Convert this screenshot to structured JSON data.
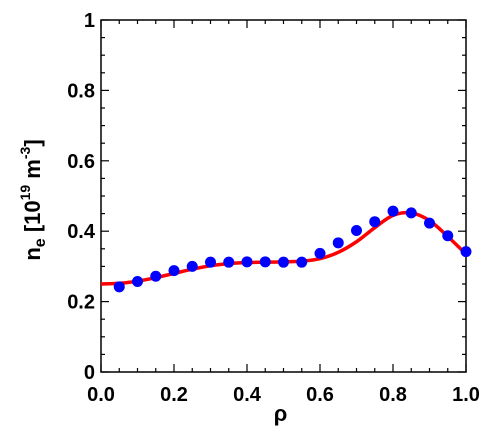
{
  "chart_data": {
    "type": "line",
    "title": "",
    "xlabel": "ρ",
    "ylabel": {
      "main": "n",
      "sub": "e",
      "bracket_open": " [10",
      "exp": "19",
      "unit": " m",
      "unit_exp": "-3",
      "bracket_close": "]"
    },
    "xlim": [
      0,
      1
    ],
    "ylim": [
      0,
      1
    ],
    "xticks": [
      "0.0",
      "0.2",
      "0.4",
      "0.6",
      "0.8",
      "1.0"
    ],
    "yticks": [
      "0",
      "0.2",
      "0.4",
      "0.6",
      "0.8",
      "1"
    ],
    "grid": false,
    "series": [
      {
        "kind": "scatter",
        "color": "#0000ff",
        "x": [
          0.05,
          0.1,
          0.15,
          0.2,
          0.25,
          0.3,
          0.35,
          0.4,
          0.45,
          0.5,
          0.55,
          0.6,
          0.65,
          0.7,
          0.75,
          0.8,
          0.85,
          0.9,
          0.95,
          1.0
        ],
        "y": [
          0.242,
          0.257,
          0.272,
          0.288,
          0.3,
          0.312,
          0.312,
          0.313,
          0.313,
          0.312,
          0.312,
          0.337,
          0.367,
          0.402,
          0.427,
          0.457,
          0.452,
          0.423,
          0.387,
          0.342
        ]
      },
      {
        "kind": "line",
        "color": "#ff0000",
        "x": [
          0.0,
          0.05,
          0.1,
          0.15,
          0.2,
          0.25,
          0.3,
          0.35,
          0.4,
          0.45,
          0.5,
          0.55,
          0.6,
          0.65,
          0.7,
          0.75,
          0.8,
          0.85,
          0.9,
          0.95,
          1.0
        ],
        "y": [
          0.25,
          0.252,
          0.258,
          0.268,
          0.28,
          0.292,
          0.302,
          0.308,
          0.311,
          0.312,
          0.313,
          0.315,
          0.322,
          0.34,
          0.37,
          0.41,
          0.445,
          0.452,
          0.43,
          0.385,
          0.335
        ]
      }
    ]
  }
}
